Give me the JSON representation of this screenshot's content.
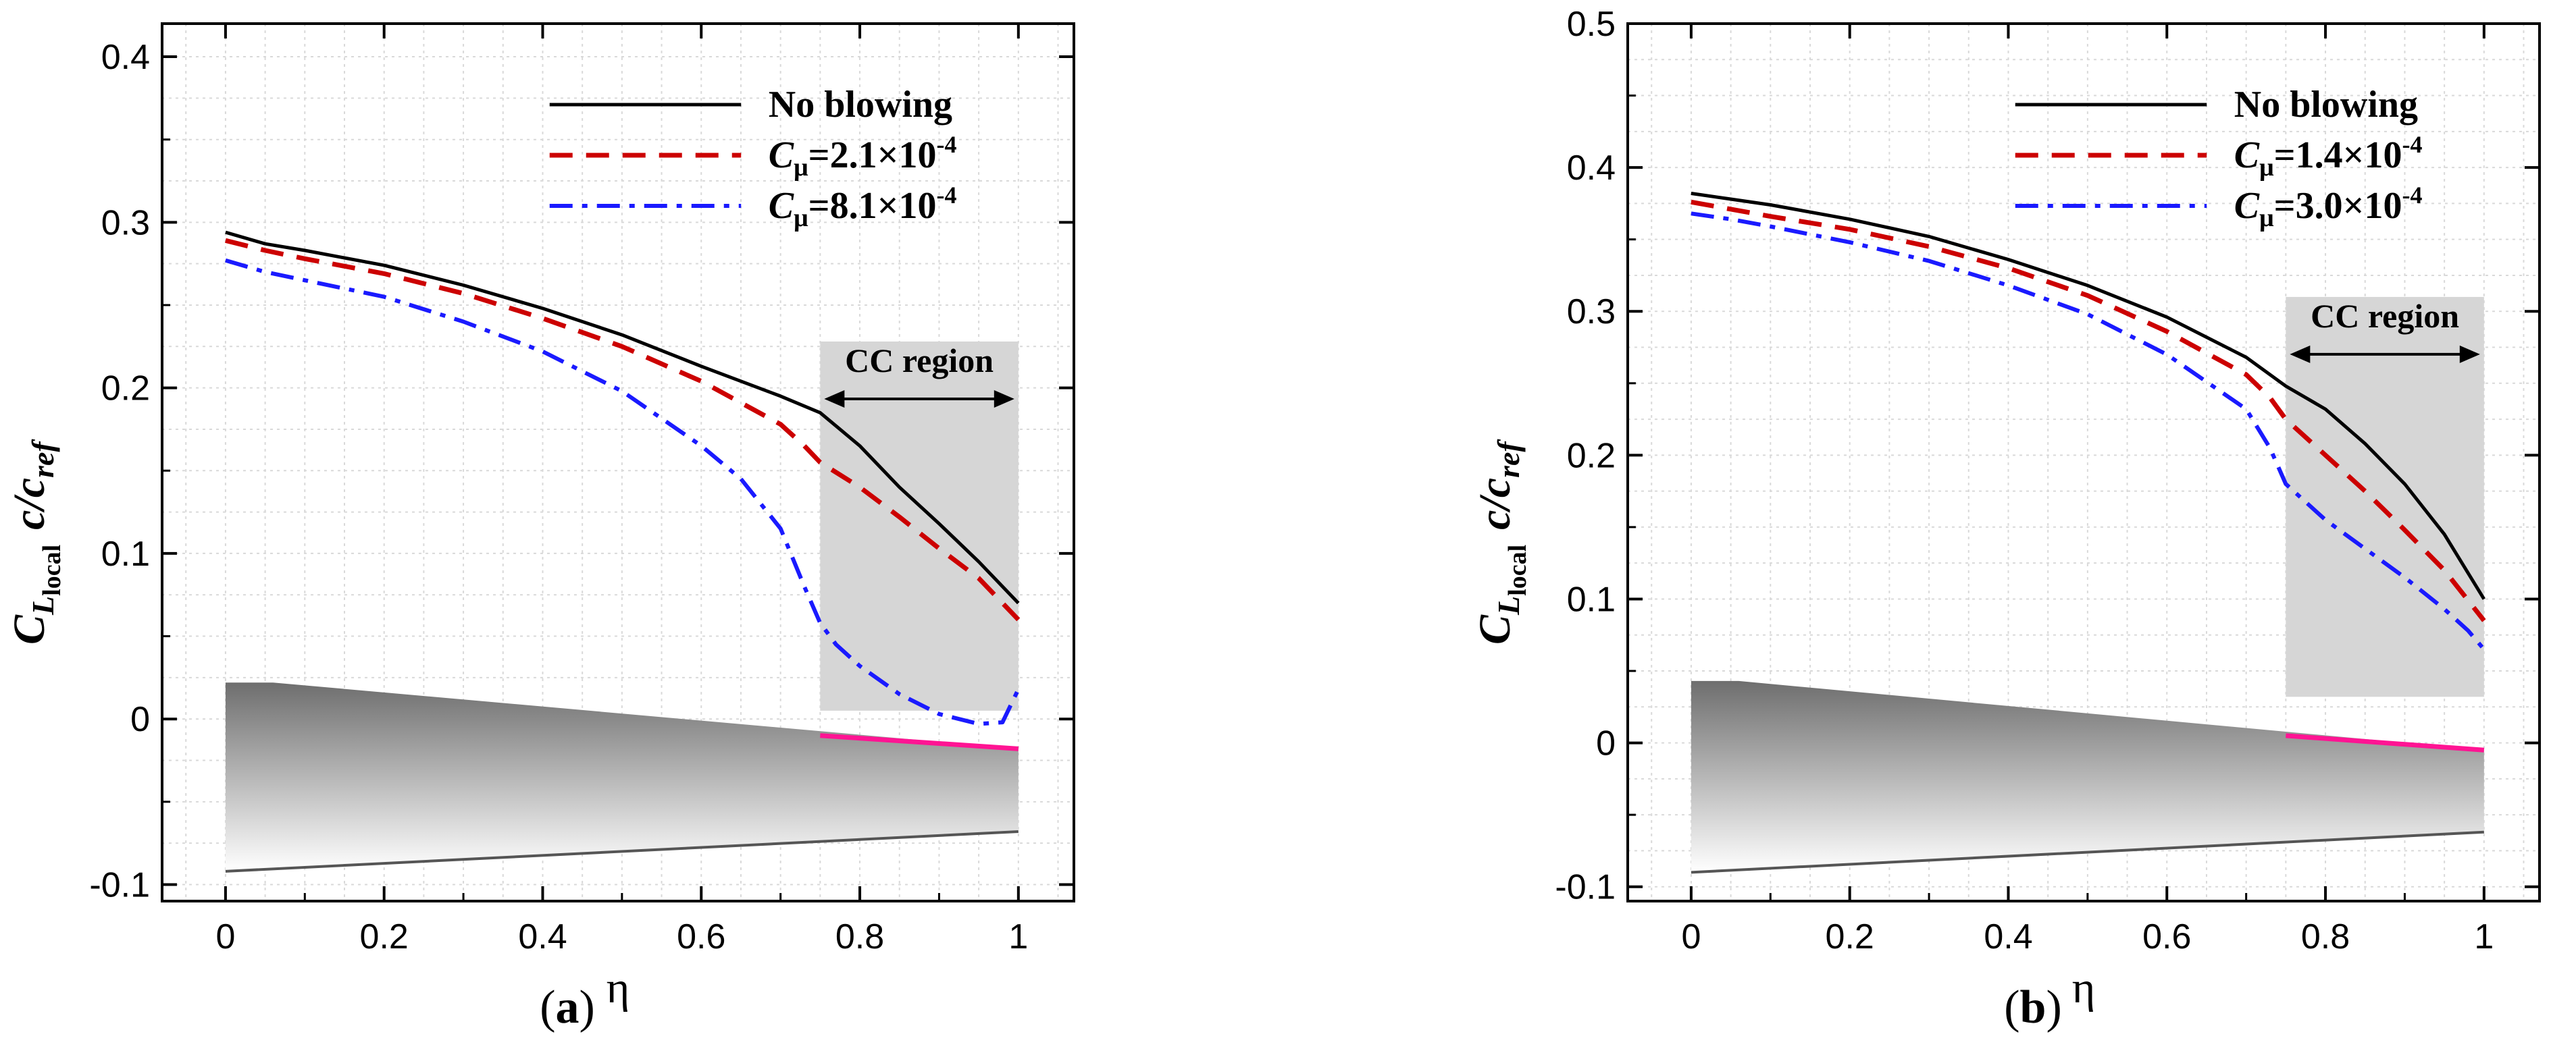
{
  "colors": {
    "no_blowing": "#000000",
    "low_cmu": "#cc0000",
    "high_cmu": "#1a1aff",
    "cc_region_fill": "#d6d6d6",
    "cc_flap_line": "#ff1493",
    "grid": "#d9d9d9"
  },
  "chart_data": [
    {
      "type": "line",
      "panel_label": "(a)",
      "xlabel": "η",
      "ylabel": "C_L local c/c_ref",
      "xlim": [
        -0.08,
        1.07
      ],
      "ylim": [
        -0.11,
        0.42
      ],
      "xticks": [
        0,
        0.2,
        0.4,
        0.6,
        0.8,
        1
      ],
      "xtick_labels": [
        "0",
        "0.2",
        "0.4",
        "0.6",
        "0.8",
        "1"
      ],
      "yticks": [
        -0.1,
        0,
        0.1,
        0.2,
        0.3,
        0.4
      ],
      "ytick_labels": [
        "-0.1",
        "0",
        "0.1",
        "0.2",
        "0.3",
        "0.4"
      ],
      "grid": true,
      "legend_position": "top-right",
      "annotation": {
        "text": "CC region",
        "x_range": [
          0.75,
          1.0
        ],
        "y_range": [
          0.005,
          0.228
        ]
      },
      "planform": {
        "le": [
          [
            0,
            0.022
          ],
          [
            0.06,
            0.022
          ],
          [
            1.0,
            -0.018
          ]
        ],
        "te": [
          [
            0,
            -0.092
          ],
          [
            1.0,
            -0.068
          ]
        ],
        "flap_le": [
          [
            0.75,
            -0.01
          ],
          [
            1.0,
            -0.018
          ]
        ]
      },
      "series": [
        {
          "name": "No blowing",
          "style": "solid",
          "x": [
            0,
            0.05,
            0.1,
            0.2,
            0.3,
            0.4,
            0.5,
            0.6,
            0.7,
            0.75,
            0.8,
            0.85,
            0.9,
            0.95,
            1.0
          ],
          "y": [
            0.294,
            0.287,
            0.283,
            0.274,
            0.262,
            0.248,
            0.232,
            0.213,
            0.195,
            0.185,
            0.165,
            0.14,
            0.118,
            0.095,
            0.07
          ]
        },
        {
          "name": "C_μ=2.1×10⁻⁴",
          "style": "dashed",
          "x": [
            0,
            0.05,
            0.1,
            0.2,
            0.3,
            0.4,
            0.5,
            0.6,
            0.7,
            0.73,
            0.75,
            0.8,
            0.85,
            0.9,
            0.95,
            1.0
          ],
          "y": [
            0.289,
            0.283,
            0.278,
            0.269,
            0.257,
            0.242,
            0.225,
            0.204,
            0.178,
            0.165,
            0.155,
            0.14,
            0.122,
            0.103,
            0.085,
            0.06
          ]
        },
        {
          "name": "C_μ=8.1×10⁻⁴",
          "style": "dashdot",
          "x": [
            0,
            0.05,
            0.1,
            0.2,
            0.3,
            0.4,
            0.5,
            0.6,
            0.65,
            0.7,
            0.73,
            0.75,
            0.77,
            0.8,
            0.85,
            0.9,
            0.95,
            0.98,
            1.0
          ],
          "y": [
            0.277,
            0.27,
            0.265,
            0.255,
            0.24,
            0.222,
            0.198,
            0.165,
            0.145,
            0.115,
            0.08,
            0.058,
            0.045,
            0.032,
            0.015,
            0.003,
            -0.003,
            -0.002,
            0.018
          ]
        }
      ]
    },
    {
      "type": "line",
      "panel_label": "(b)",
      "xlabel": "η",
      "ylabel": "C_L local c/c_ref",
      "xlim": [
        -0.08,
        1.07
      ],
      "ylim": [
        -0.11,
        0.5
      ],
      "xticks": [
        0,
        0.2,
        0.4,
        0.6,
        0.8,
        1
      ],
      "xtick_labels": [
        "0",
        "0.2",
        "0.4",
        "0.6",
        "0.8",
        "1"
      ],
      "yticks": [
        -0.1,
        0,
        0.1,
        0.2,
        0.3,
        0.4,
        0.5
      ],
      "ytick_labels": [
        "-0.1",
        "0",
        "0.1",
        "0.2",
        "0.3",
        "0.4",
        "0.5"
      ],
      "grid": true,
      "legend_position": "top-right",
      "annotation": {
        "text": "CC region",
        "x_range": [
          0.75,
          1.0
        ],
        "y_range": [
          0.032,
          0.31
        ]
      },
      "planform": {
        "le": [
          [
            0,
            0.043
          ],
          [
            0.06,
            0.043
          ],
          [
            1.0,
            -0.005
          ]
        ],
        "te": [
          [
            0,
            -0.09
          ],
          [
            1.0,
            -0.062
          ]
        ],
        "flap_le": [
          [
            0.75,
            0.005
          ],
          [
            1.0,
            -0.005
          ]
        ]
      },
      "series": [
        {
          "name": "No blowing",
          "style": "solid",
          "x": [
            0,
            0.05,
            0.1,
            0.2,
            0.3,
            0.4,
            0.5,
            0.6,
            0.7,
            0.74,
            0.75,
            0.8,
            0.85,
            0.9,
            0.95,
            1.0
          ],
          "y": [
            0.382,
            0.378,
            0.374,
            0.364,
            0.352,
            0.336,
            0.318,
            0.296,
            0.268,
            0.252,
            0.248,
            0.232,
            0.208,
            0.18,
            0.145,
            0.1
          ]
        },
        {
          "name": "C_μ=1.4×10⁻⁴",
          "style": "dashed",
          "x": [
            0,
            0.05,
            0.1,
            0.2,
            0.3,
            0.4,
            0.5,
            0.6,
            0.7,
            0.73,
            0.75,
            0.8,
            0.85,
            0.9,
            0.95,
            1.0
          ],
          "y": [
            0.376,
            0.371,
            0.366,
            0.357,
            0.345,
            0.33,
            0.311,
            0.286,
            0.256,
            0.24,
            0.225,
            0.2,
            0.175,
            0.148,
            0.12,
            0.085
          ]
        },
        {
          "name": "C_μ=3.0×10⁻⁴",
          "style": "dashdot",
          "x": [
            0,
            0.05,
            0.1,
            0.2,
            0.3,
            0.4,
            0.5,
            0.6,
            0.7,
            0.73,
            0.75,
            0.8,
            0.85,
            0.9,
            0.95,
            0.98,
            1.0
          ],
          "y": [
            0.368,
            0.364,
            0.359,
            0.348,
            0.335,
            0.318,
            0.298,
            0.27,
            0.232,
            0.205,
            0.18,
            0.155,
            0.135,
            0.115,
            0.093,
            0.078,
            0.065
          ]
        }
      ]
    }
  ],
  "legend_labels": {
    "a": {
      "no_blowing": "No blowing",
      "cmu_low": "=2.1×10",
      "cmu_high": "=8.1×10"
    },
    "b": {
      "no_blowing": "No blowing",
      "cmu_low": "=1.4×10",
      "cmu_high": "=3.0×10"
    },
    "c_symbol": "C",
    "mu_symbol": "μ",
    "exponent": "-4"
  },
  "cc_label": "CC region",
  "axis_labels": {
    "x": "η",
    "y_c": "C",
    "y_l": "L",
    "y_local": "local",
    "y_c2": "c/c",
    "y_ref": "ref"
  },
  "captions": {
    "a_open": "(",
    "a_letter": "a",
    "a_close": ")",
    "b_open": "(",
    "b_letter": "b",
    "b_close": ")"
  }
}
